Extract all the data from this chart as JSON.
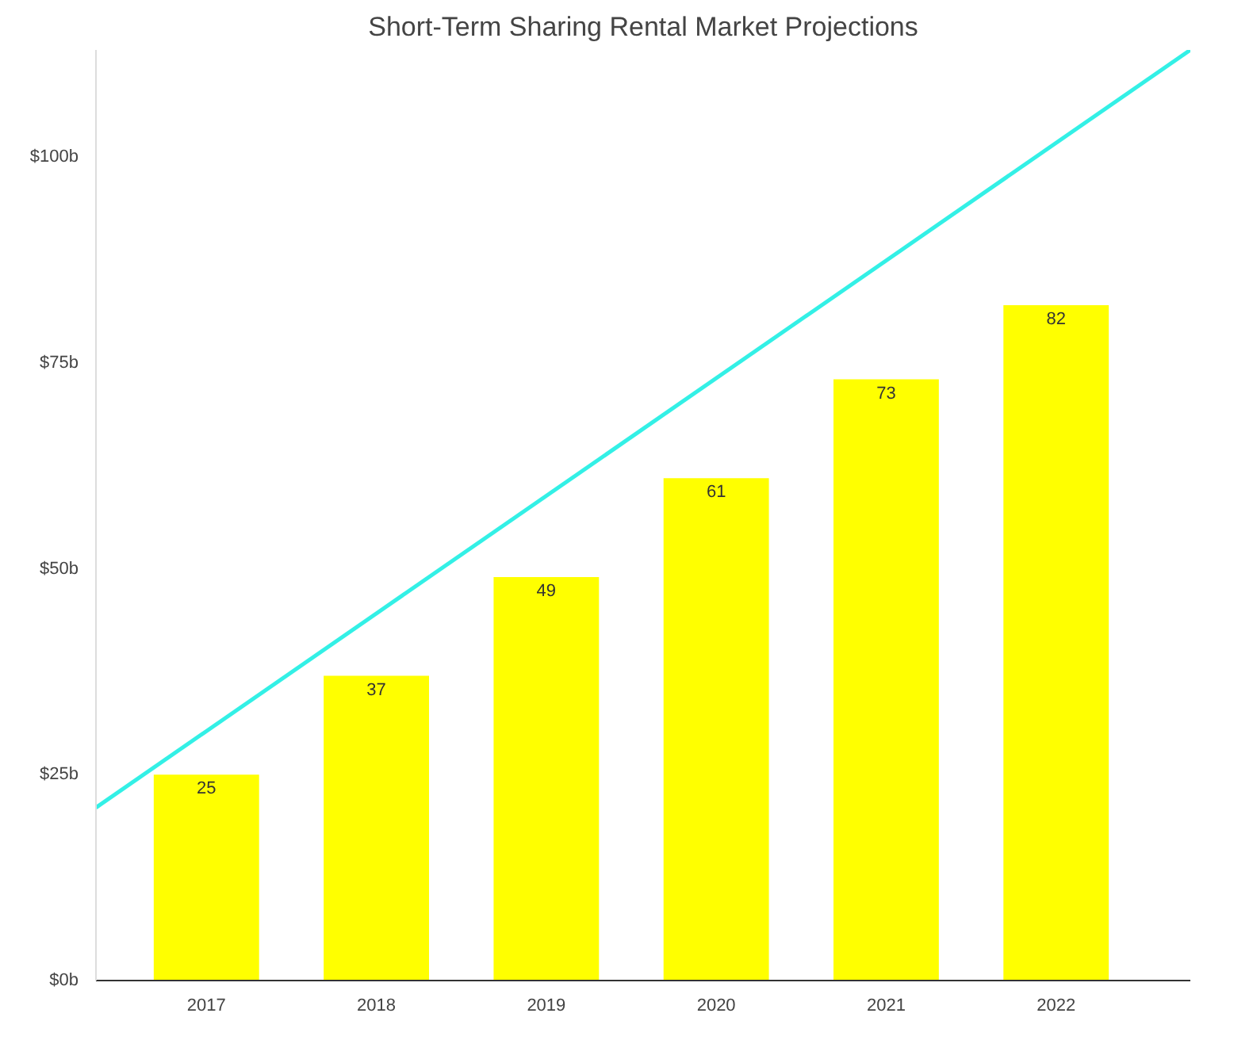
{
  "chart_data": {
    "type": "bar",
    "title": "Short-Term Sharing Rental Market Projections",
    "x": [
      2017,
      2018,
      2019,
      2020,
      2021,
      2022
    ],
    "series": [
      {
        "color": "#ffff00",
        "values": [
          25,
          37,
          49,
          61,
          73,
          82
        ],
        "value_labels": [
          "25",
          "37",
          "49",
          "61",
          "73",
          "82"
        ]
      },
      {
        "type": "line",
        "color": "#33f0e6",
        "x": [
          2016.35,
          2022.79
        ],
        "values": [
          21,
          113
        ],
        "marker": "none"
      }
    ],
    "xlim": [
      2016.35,
      2022.79
    ],
    "xticks": [
      2017,
      2018,
      2019,
      2020,
      2021,
      2022
    ],
    "ylim": [
      0,
      113
    ],
    "yticks": [
      {
        "value": 0,
        "label": "$0b"
      },
      {
        "value": 25,
        "label": "$25b"
      },
      {
        "value": 50,
        "label": "$50b"
      },
      {
        "value": 75,
        "label": "$75b"
      },
      {
        "value": 100,
        "label": "$100b"
      }
    ],
    "grid": false
  }
}
